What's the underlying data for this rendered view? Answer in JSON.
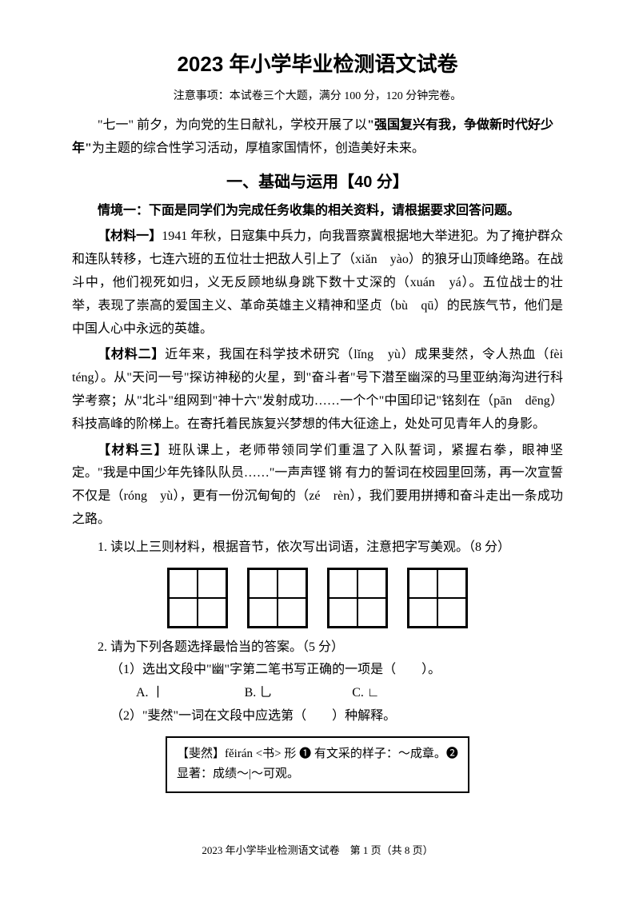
{
  "title": "2023 年小学毕业检测语文试卷",
  "notice": "注意事项：本试卷三个大题，满分 100 分，120 分钟完卷。",
  "intro_part1": "\"七一\" 前夕，为向党的生日献礼，学校开展了以",
  "intro_bold": "\"强国复兴有我，争做新时代好少年\"",
  "intro_part2": "为主题的综合性学习活动，厚植家国情怀，创造美好未来。",
  "section1_title": "一、基础与运用【40 分】",
  "context1": "情境一：下面是同学们为完成任务收集的相关资料，请根据要求回答问题。",
  "material1_label": "【材料一】",
  "material1_text": "1941 年秋，日寇集中兵力，向我晋察冀根据地大举进犯。为了掩护群众和连队转移，七连六班的五位壮士把敌人引上了（xiǎn　yào）的狼牙山顶峰绝路。在战斗中，他们视死如归，义无反顾地纵身跳下数十丈深的（xuán　yá）。五位战士的壮举，表现了崇高的爱国主义、革命英雄主义精神和坚贞（bù　qū）的民族气节，他们是中国人心中永远的英雄。",
  "material2_label": "【材料二】",
  "material2_text": "近年来，我国在科学技术研究（lǐng　yù）成果斐然，令人热血（fèi　téng）。从\"天问一号\"探访神秘的火星，到\"奋斗者\"号下潜至幽深的马里亚纳海沟进行科学考察；从\"北斗\"组网到\"神十六\"发射成功……一个个\"中国印记\"铭刻在（pān　dēng）科技高峰的阶梯上。在寄托着民族复兴梦想的伟大征途上，处处可见青年人的身影。",
  "material3_label": "【材料三】",
  "material3_text": "班队课上，老师带领同学们重温了入队誓词，紧握右拳，眼神坚定。\"我是中国少年先锋队队员……\"一声声铿 锵 有力的誓词在校园里回荡，再一次宣誓不仅是（róng　yù），更有一份沉甸甸的（zé　rèn），我们要用拼搏和奋斗走出一条成功之路。",
  "q1": "1. 读以上三则材料，根据音节，依次写出词语，注意把字写美观。（8 分）",
  "q2": "2. 请为下列各题选择最恰当的答案。（5 分）",
  "q2_1": "（1）选出文段中\"幽\"字第二笔书写正确的一项是（　　）。",
  "q2_1_optA": "A. 丨",
  "q2_1_optB": "B. 乚",
  "q2_1_optC": "C. ∟",
  "q2_2": "（2）\"斐然\"一词在文段中应选第（　　）种解释。",
  "definition": "【斐然】fěirán <书> 形 ❶ 有文采的样子：～成章。❷ 显著：成绩～|～可观。",
  "footer": "2023 年小学毕业检测语文试卷　第 1 页（共 8 页）",
  "grid_count": 4
}
